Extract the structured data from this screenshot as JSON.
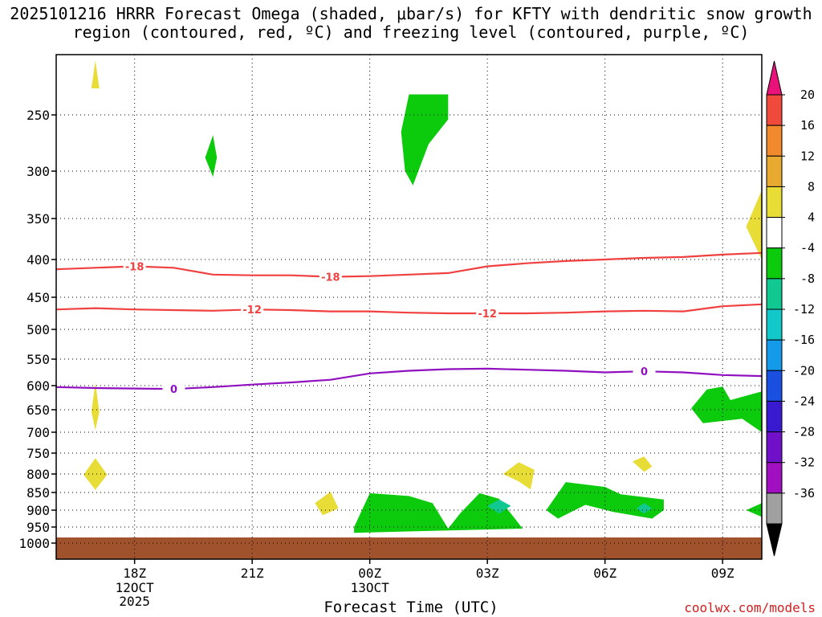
{
  "chart_data": {
    "type": "time-height contour",
    "title": "2025101216 HRRR Forecast Omega (shaded, μbar/s) for KFTY with dendritic snow growth region (contoured, red, ºC) and freezing level (contoured, purple, ºC)",
    "xlabel": "Forecast Time (UTC)",
    "ylabel": "",
    "x_ticks": [
      {
        "label": "18Z",
        "sub": [
          "12OCT",
          "2025"
        ]
      },
      {
        "label": "21Z",
        "sub": []
      },
      {
        "label": "00Z",
        "sub": [
          "13OCT"
        ]
      },
      {
        "label": "03Z",
        "sub": []
      },
      {
        "label": "06Z",
        "sub": []
      },
      {
        "label": "09Z",
        "sub": []
      }
    ],
    "x_range_hours": [
      16,
      34
    ],
    "y_ticks": [
      "250",
      "300",
      "350",
      "400",
      "450",
      "500",
      "550",
      "600",
      "650",
      "700",
      "750",
      "800",
      "850",
      "900",
      "950",
      "1000"
    ],
    "y_range_mb": [
      200,
      1020
    ],
    "colorbar": {
      "labels": [
        "20",
        "16",
        "12",
        "8",
        "4",
        "-4",
        "-8",
        "-12",
        "-16",
        "-20",
        "-24",
        "-28",
        "-32",
        "-36"
      ],
      "colors": [
        "#e8127a",
        "#f04a3c",
        "#f08a2c",
        "#e8aa30",
        "#e8dc36",
        "#ffffff",
        "#0cca0c",
        "#10c890",
        "#12c8c8",
        "#149ae8",
        "#1a50e0",
        "#3a1ad0",
        "#7010c8",
        "#a010c0",
        "#a0a0a0",
        "#000000"
      ]
    },
    "contours": [
      {
        "name": "dendritic-upper",
        "value": -18,
        "label": "-18",
        "color": "#f04040",
        "points": [
          [
            16,
            413
          ],
          [
            17,
            411
          ],
          [
            18,
            409
          ],
          [
            19,
            411
          ],
          [
            20,
            420
          ],
          [
            21,
            421
          ],
          [
            22,
            421
          ],
          [
            23,
            423
          ],
          [
            24,
            422
          ],
          [
            25,
            420
          ],
          [
            26,
            418
          ],
          [
            27,
            409
          ],
          [
            28,
            405
          ],
          [
            29,
            402
          ],
          [
            30,
            400
          ],
          [
            31,
            398
          ],
          [
            32,
            397
          ],
          [
            33,
            394
          ],
          [
            34,
            392
          ]
        ],
        "label_hours": [
          18,
          23
        ]
      },
      {
        "name": "dendritic-lower",
        "value": -12,
        "label": "-12",
        "color": "#f04040",
        "points": [
          [
            16,
            469
          ],
          [
            17,
            467
          ],
          [
            18,
            469
          ],
          [
            19,
            470
          ],
          [
            20,
            471
          ],
          [
            21,
            469
          ],
          [
            22,
            470
          ],
          [
            23,
            472
          ],
          [
            24,
            472
          ],
          [
            25,
            474
          ],
          [
            26,
            475
          ],
          [
            27,
            475
          ],
          [
            28,
            475
          ],
          [
            29,
            474
          ],
          [
            30,
            472
          ],
          [
            31,
            471
          ],
          [
            32,
            472
          ],
          [
            33,
            464
          ],
          [
            34,
            461
          ]
        ],
        "label_hours": [
          21,
          27
        ]
      },
      {
        "name": "freezing-level",
        "value": 0,
        "label": "0",
        "color": "#9010c0",
        "points": [
          [
            16,
            603
          ],
          [
            17,
            605
          ],
          [
            18,
            606
          ],
          [
            19,
            607
          ],
          [
            20,
            603
          ],
          [
            21,
            598
          ],
          [
            22,
            594
          ],
          [
            23,
            589
          ],
          [
            24,
            577
          ],
          [
            25,
            572
          ],
          [
            26,
            569
          ],
          [
            27,
            568
          ],
          [
            28,
            570
          ],
          [
            29,
            572
          ],
          [
            30,
            575
          ],
          [
            31,
            573
          ],
          [
            32,
            575
          ],
          [
            33,
            580
          ],
          [
            34,
            582
          ]
        ],
        "label_hours": [
          19,
          31
        ]
      }
    ],
    "omega_regions": [
      {
        "name": "yellow-top-left",
        "category": "4 to 8",
        "color": "#e8dc36",
        "polygon": [
          [
            16.9,
            228
          ],
          [
            17,
            205
          ],
          [
            17.1,
            228
          ]
        ]
      },
      {
        "name": "green-300",
        "category": "-4 to -8",
        "color": "#0cca0c",
        "polygon": [
          [
            19.8,
            288
          ],
          [
            20,
            268
          ],
          [
            20.1,
            288
          ],
          [
            20,
            306
          ]
        ]
      },
      {
        "name": "green-250",
        "category": "-4 to -8",
        "color": "#0cca0c",
        "polygon": [
          [
            24.8,
            265
          ],
          [
            25,
            233
          ],
          [
            26.0,
            233
          ],
          [
            26.0,
            254
          ],
          [
            25.5,
            276
          ],
          [
            25.1,
            315
          ],
          [
            24.9,
            300
          ]
        ]
      },
      {
        "name": "yellow-350",
        "category": "4 to 8",
        "color": "#e8dc36",
        "polygon": [
          [
            33.6,
            360
          ],
          [
            34,
            320
          ],
          [
            34,
            400
          ],
          [
            33.8,
            380
          ]
        ]
      },
      {
        "name": "yellow-650",
        "category": "4 to 8",
        "color": "#e8dc36",
        "polygon": [
          [
            16.9,
            655
          ],
          [
            17,
            595
          ],
          [
            17.1,
            655
          ],
          [
            17,
            695
          ]
        ]
      },
      {
        "name": "green-650",
        "category": "-4 to -8",
        "color": "#0cca0c",
        "polygon": [
          [
            32.2,
            647
          ],
          [
            32.6,
            608
          ],
          [
            33.0,
            602
          ],
          [
            33.2,
            630
          ],
          [
            34,
            612
          ],
          [
            34,
            700
          ],
          [
            33.5,
            670
          ],
          [
            32.5,
            680
          ]
        ]
      },
      {
        "name": "yellow-800",
        "category": "4 to 8",
        "color": "#e8dc36",
        "polygon": [
          [
            16.7,
            802
          ],
          [
            17,
            762
          ],
          [
            17.3,
            802
          ],
          [
            17,
            843
          ]
        ]
      },
      {
        "name": "yellow-780",
        "category": "4 to 8",
        "color": "#e8dc36",
        "polygon": [
          [
            30.7,
            770
          ],
          [
            31,
            758
          ],
          [
            31.2,
            782
          ],
          [
            31,
            795
          ]
        ]
      },
      {
        "name": "yellow-810",
        "category": "4 to 8",
        "color": "#e8dc36",
        "polygon": [
          [
            27.4,
            800
          ],
          [
            27.8,
            772
          ],
          [
            28.2,
            790
          ],
          [
            28.1,
            842
          ],
          [
            27.8,
            820
          ]
        ]
      },
      {
        "name": "yellow-890",
        "category": "4 to 8",
        "color": "#e8dc36",
        "polygon": [
          [
            22.6,
            880
          ],
          [
            23,
            848
          ],
          [
            23.2,
            895
          ],
          [
            22.8,
            915
          ]
        ]
      },
      {
        "name": "green-bottom",
        "category": "-4 to -8",
        "color": "#0cca0c",
        "polygon": [
          [
            23.6,
            950
          ],
          [
            23.8,
            900
          ],
          [
            24.0,
            852
          ],
          [
            25,
            860
          ],
          [
            25.6,
            880
          ],
          [
            26.0,
            955
          ],
          [
            26.3,
            910
          ],
          [
            26.8,
            852
          ],
          [
            27.3,
            868
          ],
          [
            27.6,
            910
          ],
          [
            27.9,
            955
          ],
          [
            23.6,
            968
          ]
        ]
      },
      {
        "name": "green-right-bottom",
        "category": "-4 to -8",
        "color": "#0cca0c",
        "polygon": [
          [
            28.5,
            900
          ],
          [
            29,
            822
          ],
          [
            30,
            835
          ],
          [
            30.4,
            855
          ],
          [
            31.5,
            870
          ],
          [
            31.5,
            900
          ],
          [
            31.2,
            925
          ],
          [
            30.2,
            905
          ],
          [
            29.5,
            885
          ],
          [
            28.8,
            925
          ]
        ]
      },
      {
        "name": "green-edge",
        "category": "-4 to -8",
        "color": "#0cca0c",
        "polygon": [
          [
            33.6,
            900
          ],
          [
            34,
            880
          ],
          [
            34,
            920
          ]
        ]
      },
      {
        "name": "teal-bottom",
        "category": "-8 to -12",
        "color": "#10c890",
        "polygon": [
          [
            27.0,
            888
          ],
          [
            27.3,
            870
          ],
          [
            27.6,
            888
          ],
          [
            27.3,
            910
          ]
        ]
      },
      {
        "name": "teal-bottom-right",
        "category": "-8 to -12",
        "color": "#10c890",
        "polygon": [
          [
            30.8,
            895
          ],
          [
            31,
            880
          ],
          [
            31.2,
            895
          ],
          [
            31,
            910
          ]
        ]
      }
    ],
    "ground": {
      "label": "surface",
      "color": "#a0522d"
    }
  },
  "footer": {
    "credit": "coolwx.com/models"
  }
}
